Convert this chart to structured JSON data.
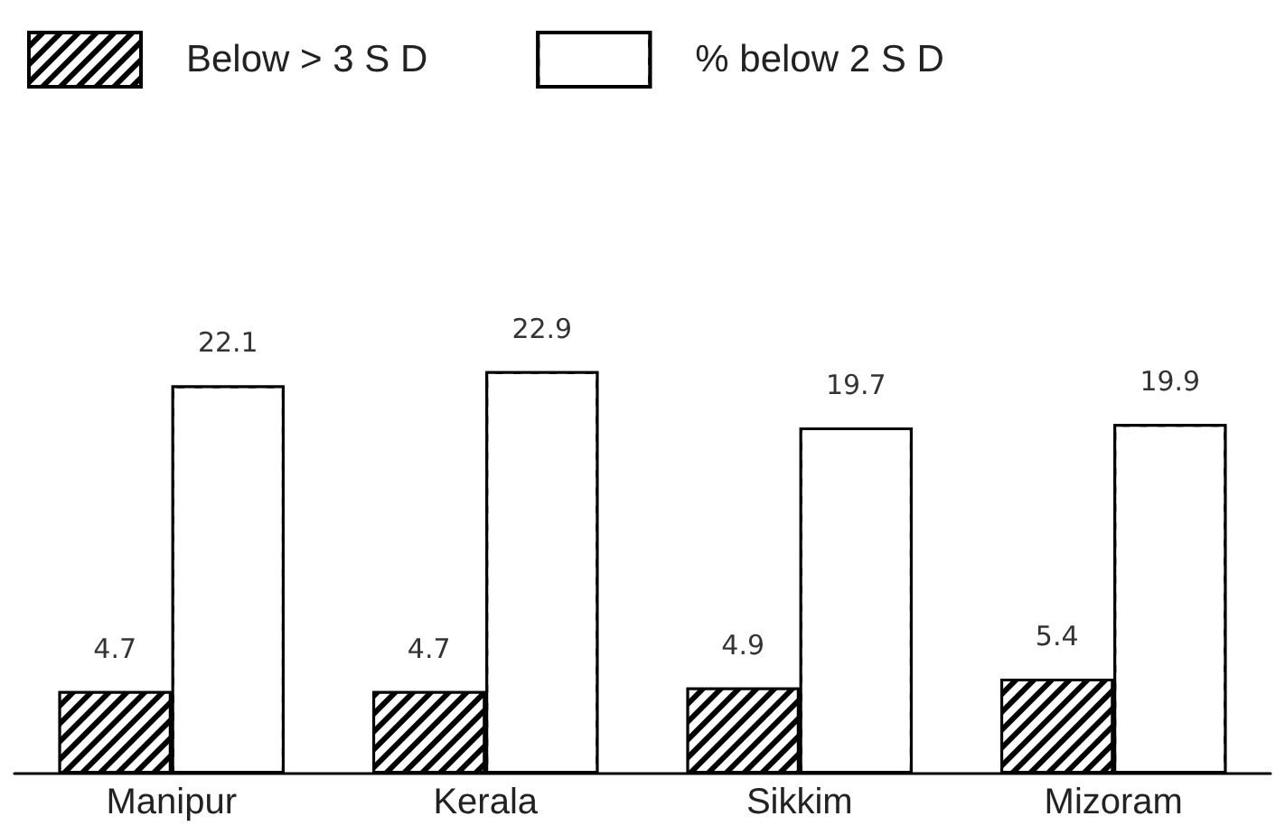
{
  "chart_data": {
    "type": "bar",
    "categories": [
      "Manipur",
      "Kerala",
      "Sikkim",
      "Mizoram"
    ],
    "series": [
      {
        "name": "Below > 3 S D",
        "color": "#000000",
        "values": [
          4.7,
          4.7,
          4.9,
          5.4
        ]
      },
      {
        "name": "% below 2 S D",
        "color": "#ffffff",
        "values": [
          22.1,
          22.9,
          19.7,
          19.9
        ]
      }
    ],
    "data_labels": true,
    "legend": "top"
  }
}
